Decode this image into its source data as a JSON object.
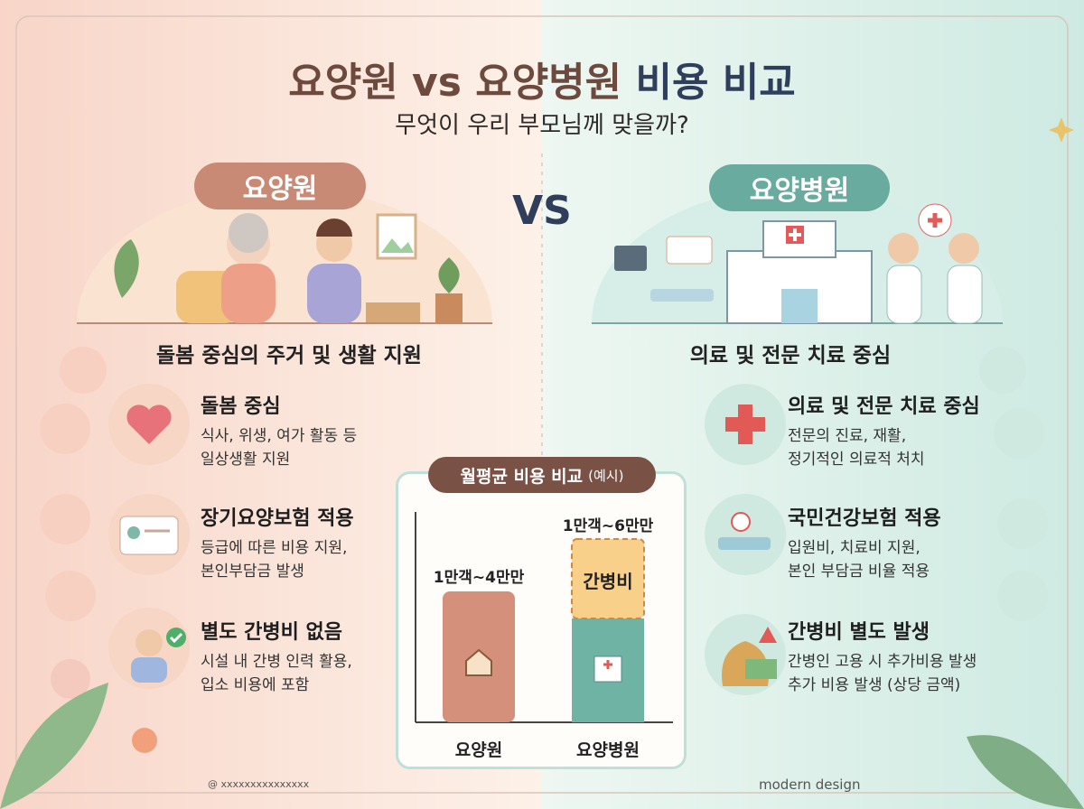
{
  "header": {
    "title_main": "요양원 vs 요양병원",
    "title_accent": "비용 비교",
    "subtitle": "무엇이 우리 부모님께 맞을까?",
    "vs": "VS"
  },
  "left": {
    "label": "요양원",
    "tagline": "돌봄 중심의 주거 및 생활 지원",
    "items": [
      {
        "title": "돌봄 중심",
        "lines": [
          "식사, 위생, 여가 활동 등",
          "일상생활 지원"
        ]
      },
      {
        "title": "장기요양보험 적용",
        "lines": [
          "등급에 따른 비용 지원,",
          "본인부담금 발생"
        ]
      },
      {
        "title": "별도 간병비 없음",
        "lines": [
          "시설 내 간병 인력 활용,",
          "입소 비용에 포함"
        ]
      }
    ]
  },
  "right": {
    "label": "요양병원",
    "tagline": "의료 및 전문 치료 중심",
    "items": [
      {
        "title": "의료 및 전문 치료 중심",
        "lines": [
          "전문의 진료, 재활,",
          "정기적인 의료적 처치"
        ]
      },
      {
        "title": "국민건강보험 적용",
        "lines": [
          "입원비, 치료비 지원,",
          "본인 부담금 비율 적용"
        ]
      },
      {
        "title": "간병비 별도 발생",
        "lines": [
          "간병인 고용 시 추가비용 발생",
          "추가 비용 발생 (상당 금액)"
        ]
      }
    ]
  },
  "cost_box": {
    "title": "월평균 비용 비교",
    "note": "(예시)",
    "bars": [
      {
        "label": "요양원",
        "range": "1만객~4만만"
      },
      {
        "label": "요양병원",
        "range": "1만객~6만만",
        "extra": "간병비"
      }
    ]
  },
  "footer": {
    "left": "@ xxxxxxxxxxxxxxx",
    "right": "modern design"
  }
}
